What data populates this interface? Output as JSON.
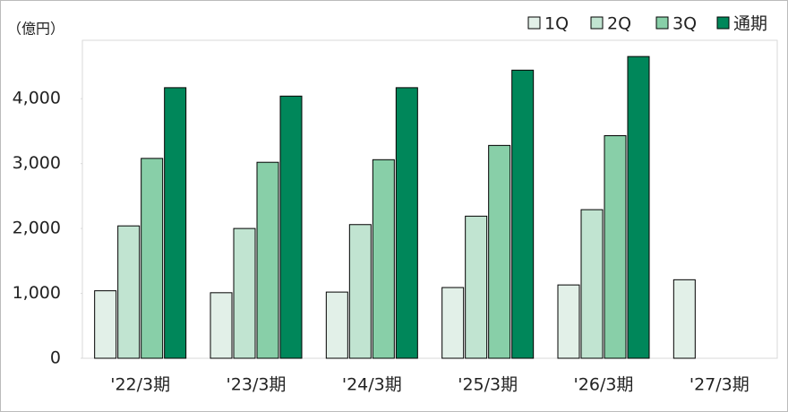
{
  "chart_data": {
    "type": "bar",
    "y_label": "（億円）",
    "categories": [
      "'22/3期",
      "'23/3期",
      "'24/3期",
      "'25/3期",
      "'26/3期",
      "'27/3期"
    ],
    "series": [
      {
        "name": "1Q",
        "color": "#e2f0e8",
        "values": [
          1040,
          1010,
          1020,
          1090,
          1130,
          1210
        ]
      },
      {
        "name": "2Q",
        "color": "#c1e4d1",
        "values": [
          2040,
          2000,
          2060,
          2190,
          2290,
          null
        ]
      },
      {
        "name": "3Q",
        "color": "#88cfa8",
        "values": [
          3080,
          3020,
          3060,
          3280,
          3430,
          null
        ]
      },
      {
        "name": "通期",
        "color": "#00875a",
        "values": [
          4170,
          4040,
          4170,
          4440,
          4650,
          null
        ]
      }
    ],
    "ylim": [
      0,
      4900
    ],
    "yticks": [
      0,
      {
        "value": 1000,
        "label": "1,000"
      },
      {
        "value": 2000,
        "label": "2,000"
      },
      {
        "value": 3000,
        "label": "3,000"
      },
      {
        "value": 4000,
        "label": "4,000"
      }
    ],
    "legend": "top-right"
  }
}
